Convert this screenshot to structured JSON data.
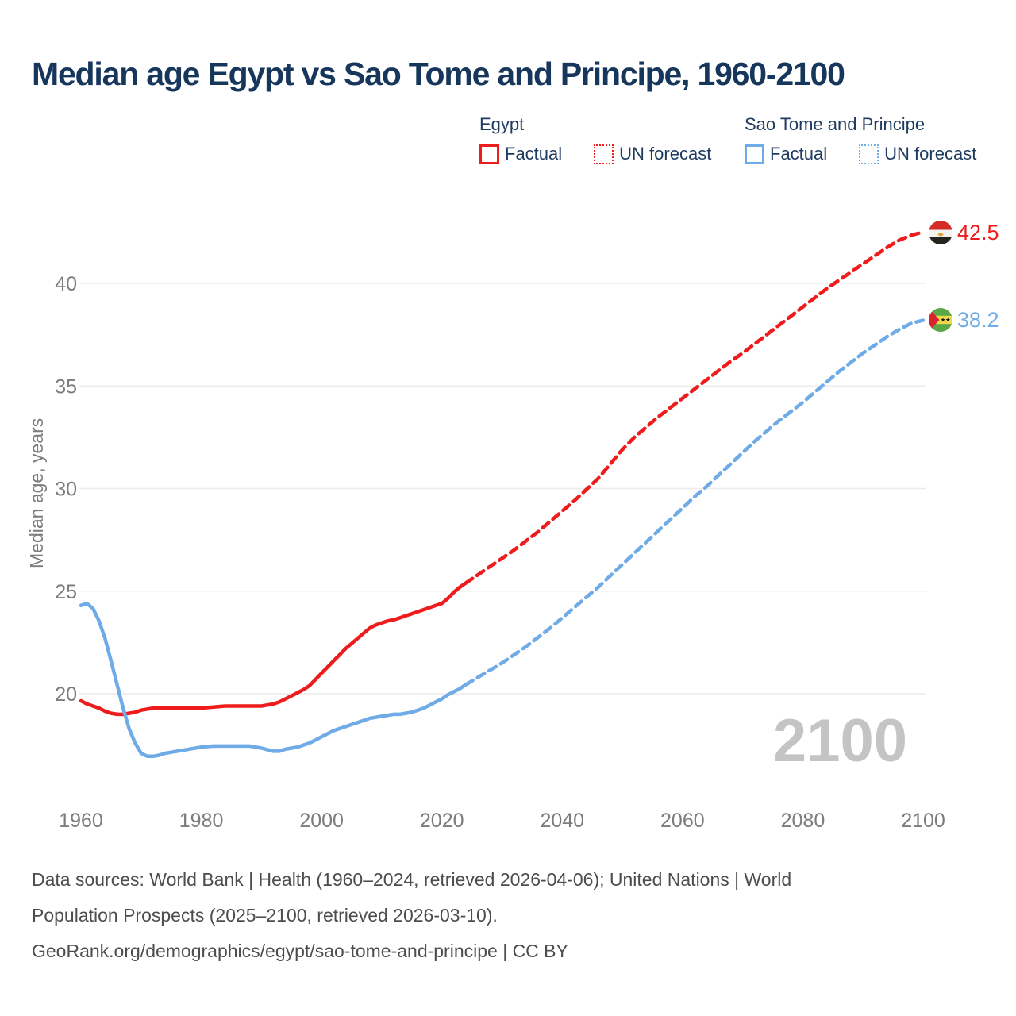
{
  "title": "Median age Egypt vs Sao Tome and Principe, 1960-2100",
  "legend": {
    "groups": [
      {
        "label": "Egypt",
        "color": "#ee1c1c",
        "items": [
          {
            "label": "Factual",
            "style": "solid"
          },
          {
            "label": "UN forecast",
            "style": "dashed"
          }
        ]
      },
      {
        "label": "Sao Tome and Principe",
        "color": "#6fabe6",
        "items": [
          {
            "label": "Factual",
            "style": "solid"
          },
          {
            "label": "UN forecast",
            "style": "dashed"
          }
        ]
      }
    ]
  },
  "chart_data": {
    "type": "line",
    "title": "Median age Egypt vs Sao Tome and Principe, 1960-2100",
    "xlabel": "",
    "ylabel": "Median age, years",
    "xlim": [
      1960,
      2100
    ],
    "ylim": [
      20,
      40
    ],
    "xticks": [
      1960,
      1980,
      2000,
      2020,
      2040,
      2060,
      2080,
      2100
    ],
    "yticks": [
      20,
      25,
      30,
      35,
      40
    ],
    "grid": "horizontal-only",
    "legend_position": "top-right",
    "watermark": "2100",
    "series": [
      {
        "name": "Egypt — Factual",
        "color": "#ee1c1c",
        "style": "solid",
        "points": [
          [
            1960,
            19.65
          ],
          [
            1961,
            19.5
          ],
          [
            1962,
            19.4
          ],
          [
            1963,
            19.3
          ],
          [
            1964,
            19.15
          ],
          [
            1965,
            19.05
          ],
          [
            1966,
            19.0
          ],
          [
            1967,
            19.0
          ],
          [
            1968,
            19.05
          ],
          [
            1969,
            19.1
          ],
          [
            1970,
            19.2
          ],
          [
            1972,
            19.3
          ],
          [
            1974,
            19.3
          ],
          [
            1976,
            19.3
          ],
          [
            1978,
            19.3
          ],
          [
            1980,
            19.3
          ],
          [
            1982,
            19.35
          ],
          [
            1984,
            19.4
          ],
          [
            1986,
            19.4
          ],
          [
            1988,
            19.4
          ],
          [
            1990,
            19.4
          ],
          [
            1991,
            19.45
          ],
          [
            1992,
            19.5
          ],
          [
            1993,
            19.6
          ],
          [
            1994,
            19.75
          ],
          [
            1995,
            19.9
          ],
          [
            1996,
            20.05
          ],
          [
            1997,
            20.2
          ],
          [
            1998,
            20.4
          ],
          [
            1999,
            20.7
          ],
          [
            2000,
            21.0
          ],
          [
            2001,
            21.3
          ],
          [
            2002,
            21.6
          ],
          [
            2003,
            21.9
          ],
          [
            2004,
            22.2
          ],
          [
            2005,
            22.45
          ],
          [
            2006,
            22.7
          ],
          [
            2007,
            22.95
          ],
          [
            2008,
            23.2
          ],
          [
            2009,
            23.35
          ],
          [
            2010,
            23.45
          ],
          [
            2011,
            23.55
          ],
          [
            2012,
            23.6
          ],
          [
            2013,
            23.7
          ],
          [
            2014,
            23.8
          ],
          [
            2015,
            23.9
          ],
          [
            2016,
            24.0
          ],
          [
            2017,
            24.1
          ],
          [
            2018,
            24.2
          ],
          [
            2019,
            24.3
          ],
          [
            2020,
            24.4
          ],
          [
            2021,
            24.65
          ],
          [
            2022,
            24.95
          ],
          [
            2023,
            25.2
          ],
          [
            2024,
            25.4
          ]
        ]
      },
      {
        "name": "Egypt — UN forecast",
        "color": "#ee1c1c",
        "style": "dashed",
        "points": [
          [
            2024,
            25.4
          ],
          [
            2026,
            25.8
          ],
          [
            2028,
            26.2
          ],
          [
            2030,
            26.6
          ],
          [
            2032,
            27.0
          ],
          [
            2034,
            27.45
          ],
          [
            2036,
            27.9
          ],
          [
            2038,
            28.4
          ],
          [
            2040,
            28.9
          ],
          [
            2042,
            29.4
          ],
          [
            2044,
            29.95
          ],
          [
            2046,
            30.5
          ],
          [
            2048,
            31.2
          ],
          [
            2050,
            31.9
          ],
          [
            2052,
            32.5
          ],
          [
            2054,
            33.0
          ],
          [
            2056,
            33.5
          ],
          [
            2058,
            33.95
          ],
          [
            2060,
            34.4
          ],
          [
            2062,
            34.85
          ],
          [
            2064,
            35.3
          ],
          [
            2066,
            35.75
          ],
          [
            2068,
            36.2
          ],
          [
            2070,
            36.6
          ],
          [
            2072,
            37.05
          ],
          [
            2074,
            37.5
          ],
          [
            2076,
            37.95
          ],
          [
            2078,
            38.4
          ],
          [
            2080,
            38.85
          ],
          [
            2082,
            39.3
          ],
          [
            2084,
            39.75
          ],
          [
            2086,
            40.15
          ],
          [
            2088,
            40.55
          ],
          [
            2090,
            40.95
          ],
          [
            2092,
            41.35
          ],
          [
            2094,
            41.75
          ],
          [
            2096,
            42.1
          ],
          [
            2098,
            42.35
          ],
          [
            2100,
            42.5
          ]
        ]
      },
      {
        "name": "Sao Tome and Principe — Factual",
        "color": "#6fabe6",
        "style": "solid",
        "points": [
          [
            1960,
            24.3
          ],
          [
            1961,
            24.4
          ],
          [
            1962,
            24.15
          ],
          [
            1963,
            23.55
          ],
          [
            1964,
            22.7
          ],
          [
            1965,
            21.6
          ],
          [
            1966,
            20.45
          ],
          [
            1967,
            19.3
          ],
          [
            1968,
            18.3
          ],
          [
            1969,
            17.6
          ],
          [
            1970,
            17.1
          ],
          [
            1971,
            16.95
          ],
          [
            1972,
            16.95
          ],
          [
            1973,
            17.0
          ],
          [
            1974,
            17.1
          ],
          [
            1975,
            17.15
          ],
          [
            1976,
            17.2
          ],
          [
            1977,
            17.25
          ],
          [
            1978,
            17.3
          ],
          [
            1980,
            17.4
          ],
          [
            1982,
            17.45
          ],
          [
            1984,
            17.45
          ],
          [
            1986,
            17.45
          ],
          [
            1988,
            17.45
          ],
          [
            1990,
            17.35
          ],
          [
            1992,
            17.2
          ],
          [
            1993,
            17.2
          ],
          [
            1994,
            17.3
          ],
          [
            1995,
            17.35
          ],
          [
            1996,
            17.4
          ],
          [
            1997,
            17.5
          ],
          [
            1998,
            17.6
          ],
          [
            1999,
            17.75
          ],
          [
            2000,
            17.9
          ],
          [
            2001,
            18.05
          ],
          [
            2002,
            18.2
          ],
          [
            2003,
            18.3
          ],
          [
            2004,
            18.4
          ],
          [
            2005,
            18.5
          ],
          [
            2006,
            18.6
          ],
          [
            2007,
            18.7
          ],
          [
            2008,
            18.8
          ],
          [
            2009,
            18.85
          ],
          [
            2010,
            18.9
          ],
          [
            2011,
            18.95
          ],
          [
            2012,
            19.0
          ],
          [
            2013,
            19.0
          ],
          [
            2014,
            19.05
          ],
          [
            2015,
            19.1
          ],
          [
            2016,
            19.2
          ],
          [
            2017,
            19.3
          ],
          [
            2018,
            19.45
          ],
          [
            2019,
            19.6
          ],
          [
            2020,
            19.75
          ],
          [
            2021,
            19.95
          ],
          [
            2022,
            20.1
          ],
          [
            2023,
            20.25
          ],
          [
            2024,
            20.45
          ]
        ]
      },
      {
        "name": "Sao Tome and Principe — UN forecast",
        "color": "#6fabe6",
        "style": "dashed",
        "points": [
          [
            2024,
            20.45
          ],
          [
            2026,
            20.8
          ],
          [
            2028,
            21.15
          ],
          [
            2030,
            21.5
          ],
          [
            2032,
            21.9
          ],
          [
            2034,
            22.3
          ],
          [
            2036,
            22.75
          ],
          [
            2038,
            23.2
          ],
          [
            2040,
            23.7
          ],
          [
            2042,
            24.2
          ],
          [
            2044,
            24.7
          ],
          [
            2046,
            25.2
          ],
          [
            2048,
            25.75
          ],
          [
            2050,
            26.3
          ],
          [
            2052,
            26.85
          ],
          [
            2054,
            27.4
          ],
          [
            2056,
            27.95
          ],
          [
            2058,
            28.5
          ],
          [
            2060,
            29.05
          ],
          [
            2062,
            29.6
          ],
          [
            2064,
            30.1
          ],
          [
            2066,
            30.65
          ],
          [
            2068,
            31.2
          ],
          [
            2070,
            31.75
          ],
          [
            2072,
            32.3
          ],
          [
            2074,
            32.8
          ],
          [
            2076,
            33.3
          ],
          [
            2078,
            33.75
          ],
          [
            2080,
            34.2
          ],
          [
            2082,
            34.7
          ],
          [
            2084,
            35.2
          ],
          [
            2086,
            35.7
          ],
          [
            2088,
            36.15
          ],
          [
            2090,
            36.6
          ],
          [
            2092,
            37.0
          ],
          [
            2094,
            37.4
          ],
          [
            2096,
            37.75
          ],
          [
            2098,
            38.05
          ],
          [
            2100,
            38.2
          ]
        ]
      }
    ],
    "end_labels": [
      {
        "series": "Egypt",
        "value": "42.5",
        "color": "#ee1c1c",
        "flag": "egypt-flag"
      },
      {
        "series": "Sao Tome and Principe",
        "value": "38.2",
        "color": "#6fabe6",
        "flag": "sao-tome-and-principe-flag"
      }
    ]
  },
  "footer": {
    "line1": "Data sources: World Bank | Health (1960–2024, retrieved 2026-04-06); United Nations | World",
    "line2": "Population Prospects (2025–2100, retrieved 2026-03-10).",
    "line3": "GeoRank.org/demographics/egypt/sao-tome-and-principe | CC BY"
  }
}
